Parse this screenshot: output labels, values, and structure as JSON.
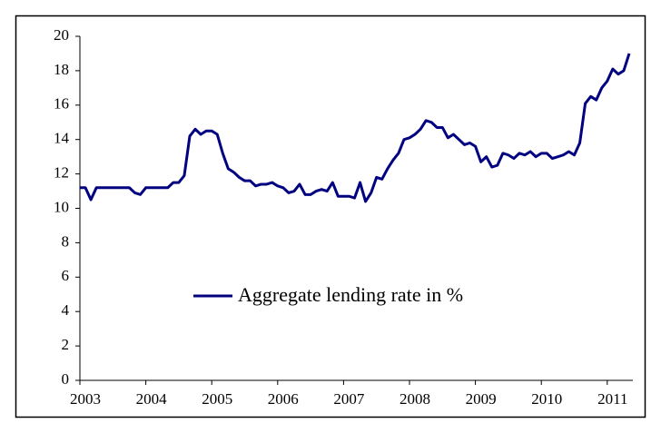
{
  "chart_data": {
    "type": "line",
    "categories": [
      "2003",
      null,
      null,
      null,
      null,
      null,
      null,
      null,
      null,
      null,
      null,
      null,
      "2004",
      null,
      null,
      null,
      null,
      null,
      null,
      null,
      null,
      null,
      null,
      null,
      "2005",
      null,
      null,
      null,
      null,
      null,
      null,
      null,
      null,
      null,
      null,
      null,
      "2006",
      null,
      null,
      null,
      null,
      null,
      null,
      null,
      null,
      null,
      null,
      null,
      "2007",
      null,
      null,
      null,
      null,
      null,
      null,
      null,
      null,
      null,
      null,
      null,
      "2008",
      null,
      null,
      null,
      null,
      null,
      null,
      null,
      null,
      null,
      null,
      null,
      "2009",
      null,
      null,
      null,
      null,
      null,
      null,
      null,
      null,
      null,
      null,
      null,
      "2010",
      null,
      null,
      null,
      null,
      null,
      null,
      null,
      null,
      null,
      null,
      null,
      "2011",
      null,
      null,
      null,
      null
    ],
    "series": [
      {
        "name": "Aggregate lending rate in %",
        "color": "#000080",
        "values": [
          11.2,
          11.2,
          10.5,
          11.2,
          11.2,
          11.2,
          11.2,
          11.2,
          11.2,
          11.2,
          10.9,
          10.8,
          11.2,
          11.2,
          11.2,
          11.2,
          11.2,
          11.5,
          11.5,
          11.9,
          14.2,
          14.6,
          14.3,
          14.5,
          14.5,
          14.3,
          13.2,
          12.3,
          12.1,
          11.8,
          11.6,
          11.6,
          11.3,
          11.4,
          11.4,
          11.5,
          11.3,
          11.2,
          10.9,
          11.0,
          11.4,
          10.8,
          10.8,
          11.0,
          11.1,
          11.0,
          11.5,
          10.7,
          10.7,
          10.7,
          10.6,
          11.5,
          10.4,
          10.9,
          11.8,
          11.7,
          12.3,
          12.8,
          13.2,
          14.0,
          14.1,
          14.3,
          14.6,
          15.1,
          15.0,
          14.7,
          14.7,
          14.1,
          14.3,
          14.0,
          13.7,
          13.8,
          13.6,
          12.7,
          13.0,
          12.4,
          12.5,
          13.2,
          13.1,
          12.9,
          13.2,
          13.1,
          13.3,
          13.0,
          13.2,
          13.2,
          12.9,
          13.0,
          13.1,
          13.3,
          13.1,
          13.8,
          16.1,
          16.5,
          16.3,
          17.0,
          17.4,
          18.1,
          17.8,
          18.0,
          19.0
        ]
      }
    ],
    "ylim": [
      0,
      20
    ],
    "yticks": [
      0,
      2,
      4,
      6,
      8,
      10,
      12,
      14,
      16,
      18,
      20
    ],
    "grid": false,
    "legend": "center"
  }
}
